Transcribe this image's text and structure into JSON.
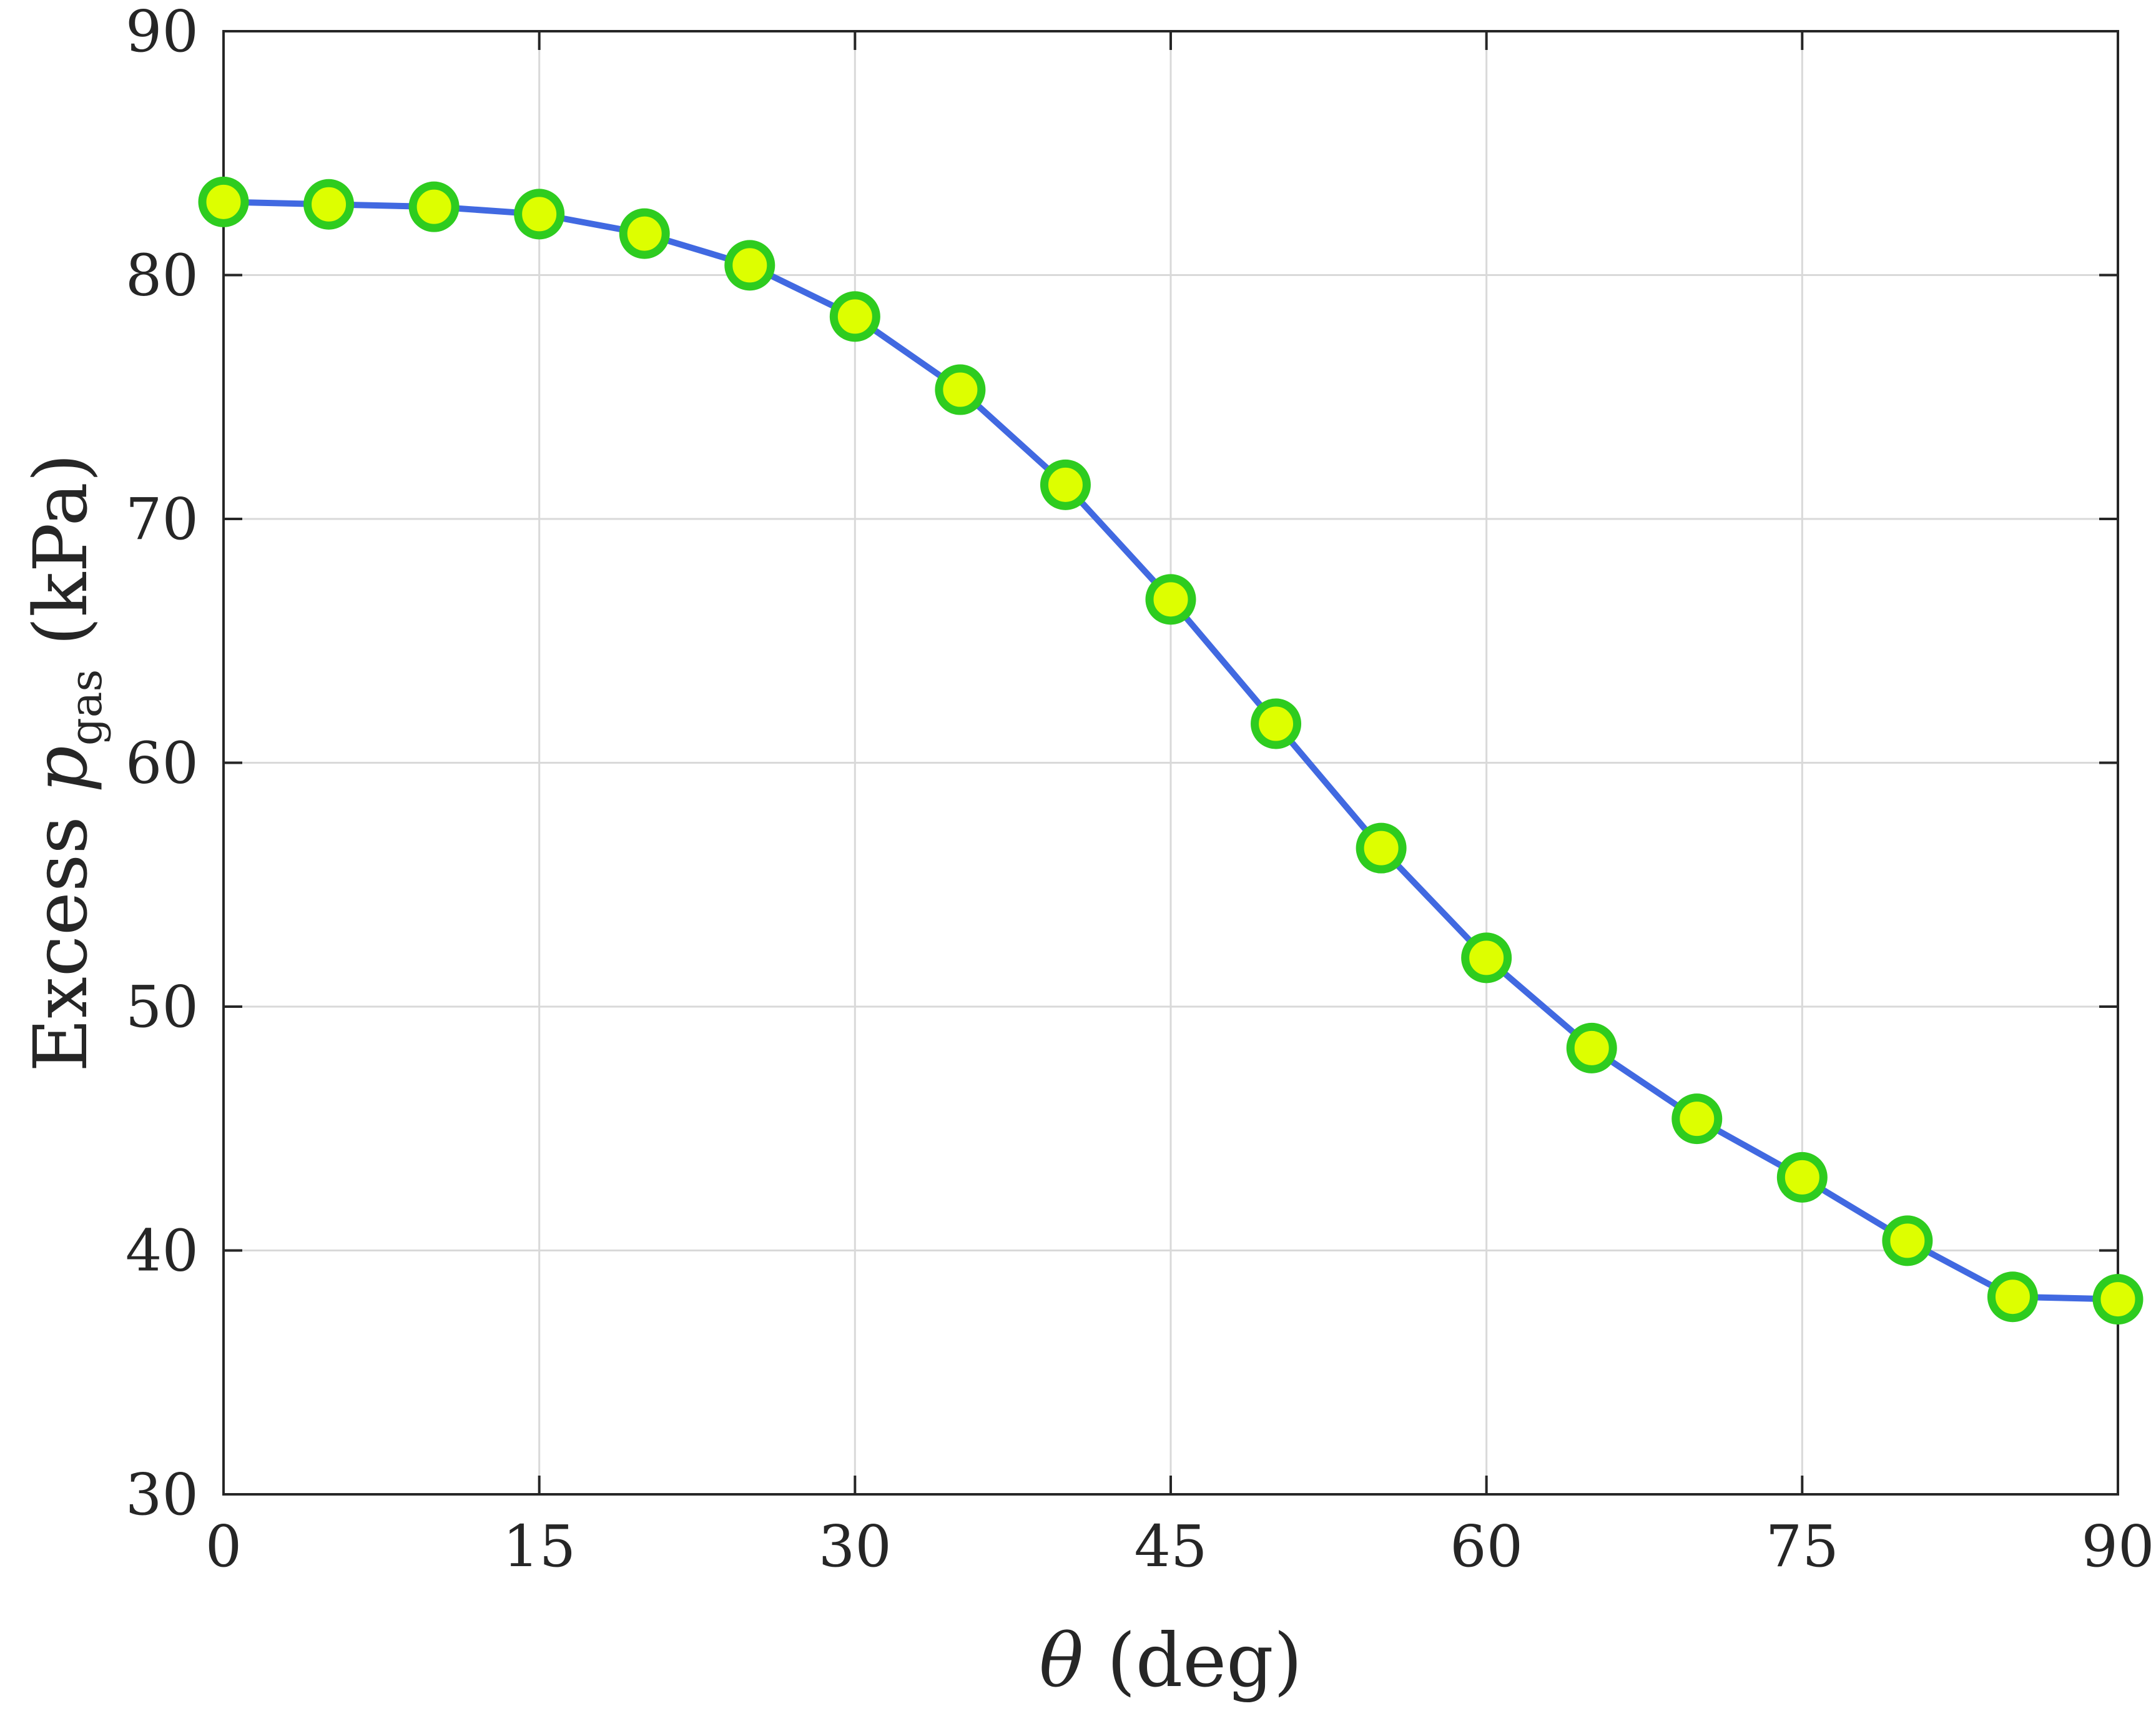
{
  "chart_data": {
    "type": "line",
    "xlabel": {
      "symbol": "θ",
      "text": " (deg)"
    },
    "ylabel": {
      "prefix": "Excess ",
      "symbol": "p",
      "subscript": "gas",
      "suffix": " (kPa)"
    },
    "xlim": [
      0,
      90
    ],
    "ylim": [
      30,
      90
    ],
    "xticks": [
      0,
      15,
      30,
      45,
      60,
      75,
      90
    ],
    "yticks": [
      30,
      40,
      50,
      60,
      70,
      80,
      90
    ],
    "grid": true,
    "x": [
      0,
      5,
      10,
      15,
      20,
      25,
      30,
      35,
      40,
      45,
      50,
      55,
      60,
      65,
      70,
      75,
      80,
      85,
      90
    ],
    "series": [
      {
        "values": [
          83.0,
          82.9,
          82.8,
          82.5,
          81.7,
          80.4,
          78.3,
          75.3,
          71.4,
          66.7,
          61.6,
          56.5,
          52.0,
          48.3,
          45.4,
          43.0,
          40.4,
          38.1,
          38.0
        ],
        "line_color": "#4169e1",
        "marker_face": "#ddff00",
        "marker_edge": "#2ecc1f"
      }
    ]
  }
}
